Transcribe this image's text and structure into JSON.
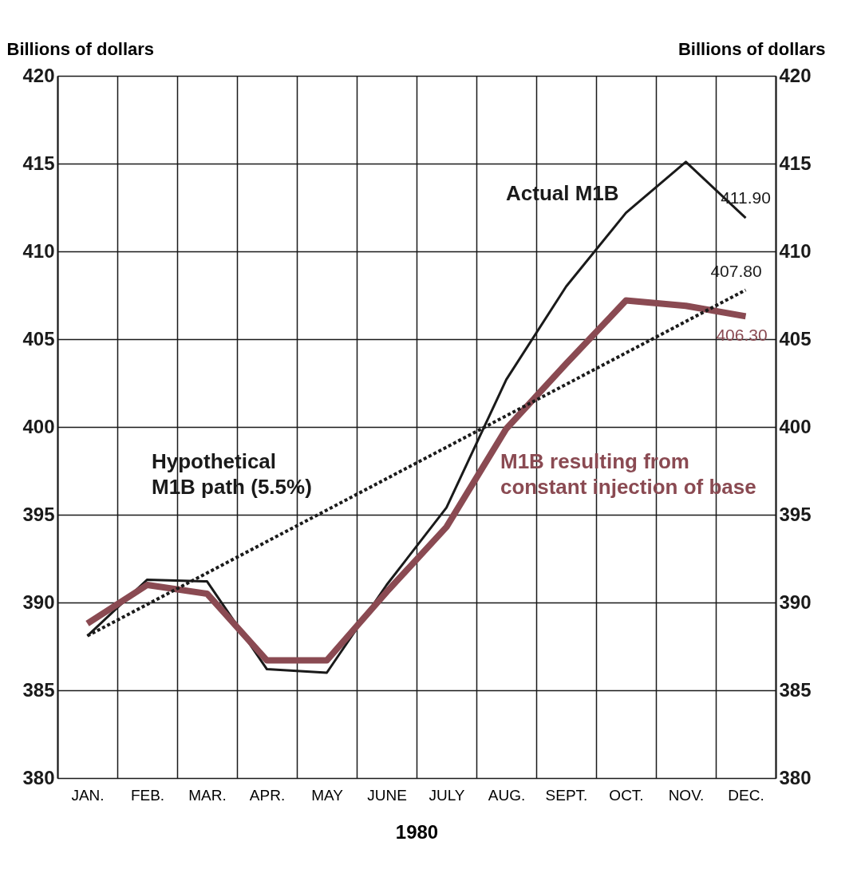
{
  "chart_data": {
    "type": "line",
    "ylabel": "Billions of dollars",
    "y2label": "Billions of dollars",
    "xlabel": "1980",
    "categories": [
      "JAN.",
      "FEB.",
      "MAR.",
      "APR.",
      "MAY",
      "JUNE",
      "JULY",
      "AUG.",
      "SEPT.",
      "OCT.",
      "NOV.",
      "DEC."
    ],
    "series": [
      {
        "name": "Actual M1B",
        "color": "#1a1a1a",
        "line_style": "solid",
        "values": [
          388.1,
          391.3,
          391.2,
          386.2,
          386.0,
          391.0,
          395.4,
          402.7,
          408.0,
          412.2,
          415.1,
          411.9
        ],
        "value_labels": [
          null,
          null,
          null,
          null,
          null,
          null,
          null,
          null,
          null,
          null,
          null,
          "411.90"
        ]
      },
      {
        "name": "M1B resulting from\nconstant injection of base",
        "color": "#8a4a52",
        "line_style": "solid",
        "values": [
          388.8,
          391.0,
          390.5,
          386.7,
          386.7,
          390.6,
          394.3,
          399.9,
          403.6,
          407.2,
          406.9,
          406.3
        ],
        "value_labels": [
          null,
          null,
          null,
          null,
          null,
          null,
          null,
          null,
          null,
          null,
          null,
          "406.30"
        ]
      },
      {
        "name": "Hypothetical\nM1B path (5.5%)",
        "color": "#1a1a1a",
        "line_style": "dotted",
        "values": [
          388.1,
          null,
          null,
          null,
          null,
          null,
          null,
          null,
          null,
          null,
          null,
          407.8
        ],
        "value_labels": [
          null,
          null,
          null,
          null,
          null,
          null,
          null,
          null,
          null,
          null,
          null,
          "407.80"
        ]
      }
    ],
    "ylim": [
      380,
      420
    ],
    "yticks": [
      380,
      385,
      390,
      395,
      400,
      405,
      410,
      415,
      420
    ],
    "y2lim": [
      380,
      420
    ],
    "y2ticks": [
      380,
      385,
      390,
      395,
      400,
      405,
      410,
      415,
      420
    ],
    "grid": true,
    "marker": "none"
  }
}
